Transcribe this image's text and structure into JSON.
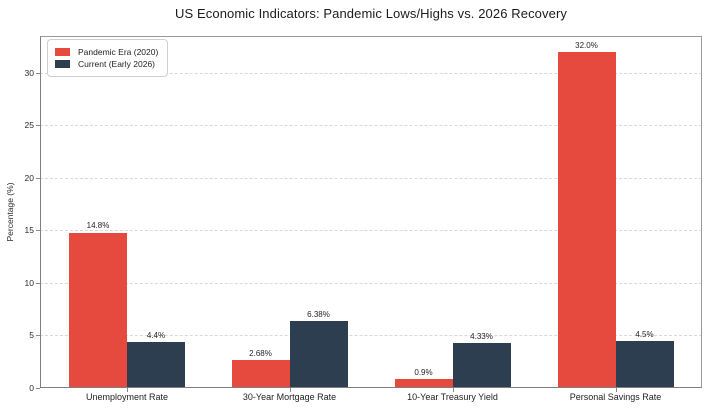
{
  "chart_data": {
    "type": "bar",
    "title": "US Economic Indicators: Pandemic Lows/Highs vs. 2026 Recovery",
    "ylabel": "Percentage (%)",
    "ylim": [
      0,
      33.5
    ],
    "yticks": [
      0,
      5,
      10,
      15,
      20,
      25,
      30
    ],
    "grid": "horizontal-dashed",
    "legend_position": "upper-left",
    "categories": [
      "Unemployment Rate",
      "30-Year Mortgage Rate",
      "10-Year Treasury Yield",
      "Personal Savings Rate"
    ],
    "series": [
      {
        "name": "Pandemic Era (2020)",
        "color": "#e64a3e",
        "values": [
          14.8,
          2.68,
          0.9,
          32.0
        ],
        "value_labels": [
          "14.8%",
          "2.68%",
          "0.9%",
          "32.0%"
        ]
      },
      {
        "name": "Current (Early 2026)",
        "color": "#2c3e50",
        "values": [
          4.4,
          6.38,
          4.33,
          4.5
        ],
        "value_labels": [
          "4.4%",
          "6.38%",
          "4.33%",
          "4.5%"
        ]
      }
    ]
  }
}
